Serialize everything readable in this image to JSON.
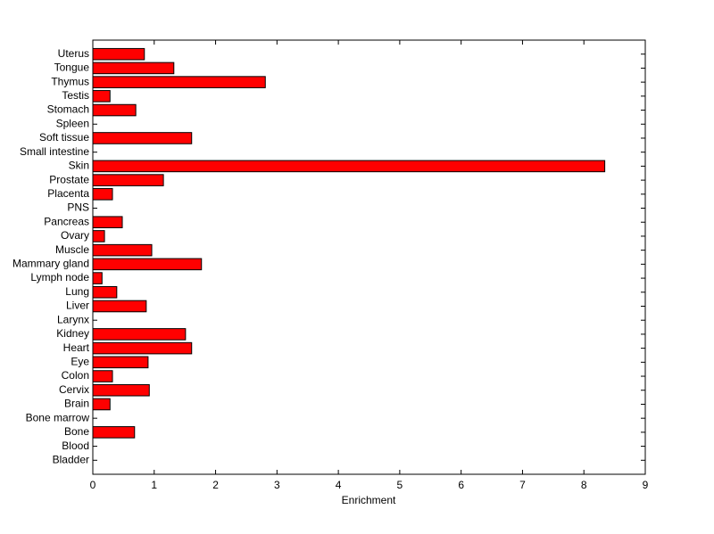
{
  "chart_data": {
    "type": "hbar",
    "x_label": "Enrichment",
    "categories": [
      "Bladder",
      "Blood",
      "Bone",
      "Bone marrow",
      "Brain",
      "Cervix",
      "Colon",
      "Eye",
      "Heart",
      "Kidney",
      "Larynx",
      "Liver",
      "Lung",
      "Lymph node",
      "Mammary gland",
      "Muscle",
      "Ovary",
      "Pancreas",
      "PNS",
      "Placenta",
      "Prostate",
      "Skin",
      "Small intestine",
      "Soft tissue",
      "Spleen",
      "Stomach",
      "Testis",
      "Thymus",
      "Tongue",
      "Uterus"
    ],
    "values": [
      0,
      0,
      0.68,
      0,
      0.28,
      0.92,
      0.32,
      0.9,
      1.61,
      1.51,
      0,
      0.87,
      0.39,
      0.15,
      1.77,
      0.96,
      0.19,
      0.48,
      0,
      0.32,
      1.15,
      8.34,
      0,
      1.61,
      0,
      0.7,
      0.28,
      2.81,
      1.32,
      0.84
    ],
    "color": "#ff0000",
    "xlim": [
      0,
      9
    ],
    "xticks": [
      0,
      1,
      2,
      3,
      4,
      5,
      6,
      7,
      8,
      9
    ]
  }
}
